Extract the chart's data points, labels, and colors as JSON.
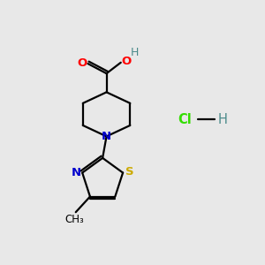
{
  "bg_color": "#e8e8e8",
  "atom_colors": {
    "O": "#ff0000",
    "N": "#0000cc",
    "S": "#ccaa00",
    "Cl": "#33dd00",
    "C": "#000000",
    "H": "#4a8a8a"
  },
  "lw": 1.6,
  "fontsize": 9.5
}
